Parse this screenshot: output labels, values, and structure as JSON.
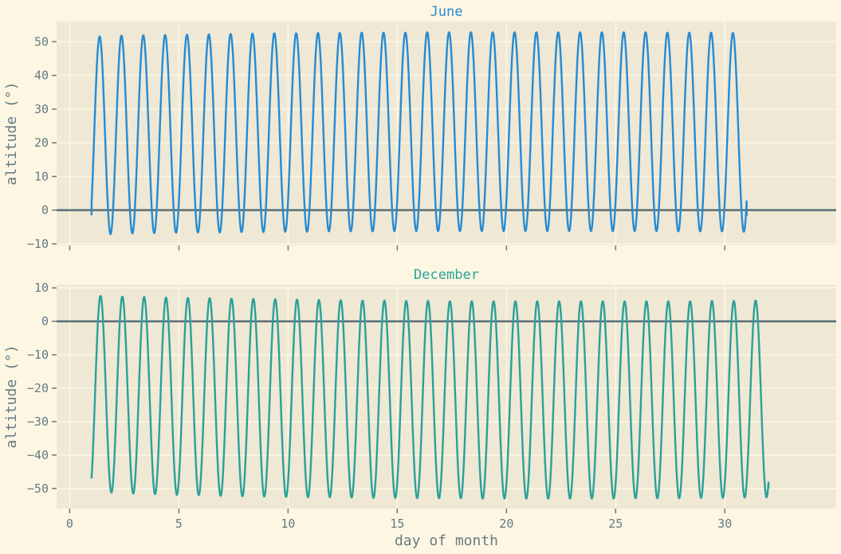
{
  "chart_data": [
    {
      "type": "line",
      "title": "June",
      "title_color": "#268bd2",
      "ylabel": "altitude (°)",
      "xlabel": "",
      "xlim": [
        -0.6,
        35.1
      ],
      "ylim": [
        -10.5,
        56
      ],
      "xticks": [
        0,
        5,
        10,
        15,
        20,
        25,
        30
      ],
      "xtick_labels": [
        "",
        "",
        "",
        "",
        "",
        "",
        ""
      ],
      "yticks": [
        -10,
        0,
        10,
        20,
        30,
        40,
        50
      ],
      "ytick_labels": [
        "−10",
        "0",
        "10",
        "20",
        "30",
        "40",
        "50"
      ],
      "grid": true,
      "hline": 0,
      "series": [
        {
          "color": "#268bd2",
          "x_start": 1,
          "x_end": 31,
          "period_days": 1.0,
          "peak_x": [
            1.37,
            2.37,
            3.37,
            4.37,
            5.37,
            6.37,
            7.37,
            8.37,
            9.37,
            10.37,
            11.37,
            12.37,
            13.37,
            14.37,
            15.37,
            16.37,
            17.37,
            18.37,
            19.37,
            20.37,
            21.37,
            22.37,
            23.37,
            24.37,
            25.37,
            26.37,
            27.37,
            28.37,
            29.37,
            30.37
          ],
          "max_values": [
            51.6,
            51.8,
            51.9,
            52.0,
            52.1,
            52.2,
            52.3,
            52.4,
            52.5,
            52.5,
            52.6,
            52.6,
            52.7,
            52.7,
            52.7,
            52.8,
            52.8,
            52.8,
            52.8,
            52.8,
            52.8,
            52.8,
            52.8,
            52.8,
            52.8,
            52.8,
            52.7,
            52.7,
            52.7,
            52.6
          ],
          "min_values": [
            -7.1,
            -6.9,
            -6.8,
            -6.7,
            -6.6,
            -6.6,
            -6.5,
            -6.5,
            -6.4,
            -6.4,
            -6.3,
            -6.3,
            -6.3,
            -6.2,
            -6.2,
            -6.2,
            -6.2,
            -6.2,
            -6.2,
            -6.2,
            -6.2,
            -6.2,
            -6.2,
            -6.2,
            -6.2,
            -6.2,
            -6.3,
            -6.3,
            -6.3,
            -6.4
          ],
          "y_start": -1.5,
          "y_end": -1.7
        }
      ]
    },
    {
      "type": "line",
      "title": "December",
      "title_color": "#2aa198",
      "ylabel": "altitude (°)",
      "xlabel": "day of month",
      "xlim": [
        -0.6,
        35.1
      ],
      "ylim": [
        -56,
        11
      ],
      "xticks": [
        0,
        5,
        10,
        15,
        20,
        25,
        30
      ],
      "xtick_labels": [
        "0",
        "5",
        "10",
        "15",
        "20",
        "25",
        "30"
      ],
      "yticks": [
        -50,
        -40,
        -30,
        -20,
        -10,
        0,
        10
      ],
      "ytick_labels": [
        "−50",
        "−40",
        "−30",
        "−20",
        "−10",
        "0",
        "10"
      ],
      "grid": true,
      "hline": 0,
      "series": [
        {
          "color": "#2aa198",
          "x_start": 1,
          "x_end": 32,
          "period_days": 1.0,
          "peak_x": [
            1.41,
            2.41,
            3.41,
            4.41,
            5.41,
            6.41,
            7.41,
            8.41,
            9.41,
            10.41,
            11.41,
            12.41,
            13.41,
            14.41,
            15.41,
            16.41,
            17.41,
            18.41,
            19.41,
            20.41,
            21.41,
            22.41,
            23.41,
            24.41,
            25.41,
            26.41,
            27.41,
            28.41,
            29.41,
            30.41,
            31.41
          ],
          "max_values": [
            7.6,
            7.4,
            7.3,
            7.1,
            7.0,
            6.9,
            6.8,
            6.7,
            6.6,
            6.5,
            6.4,
            6.3,
            6.2,
            6.2,
            6.1,
            6.1,
            6.0,
            6.0,
            6.0,
            6.0,
            6.0,
            6.0,
            6.0,
            6.0,
            6.0,
            6.0,
            6.0,
            6.0,
            6.1,
            6.1,
            6.2
          ],
          "min_values": [
            -51.2,
            -51.5,
            -51.7,
            -51.9,
            -52.0,
            -52.2,
            -52.3,
            -52.4,
            -52.5,
            -52.6,
            -52.6,
            -52.7,
            -52.8,
            -52.8,
            -52.9,
            -52.9,
            -52.9,
            -53.0,
            -53.0,
            -53.0,
            -53.0,
            -53.0,
            -53.0,
            -53.0,
            -52.9,
            -52.9,
            -52.9,
            -52.8,
            -52.8,
            -52.7,
            -52.6
          ],
          "y_start": -47.0,
          "y_end": -50.0
        }
      ]
    }
  ]
}
